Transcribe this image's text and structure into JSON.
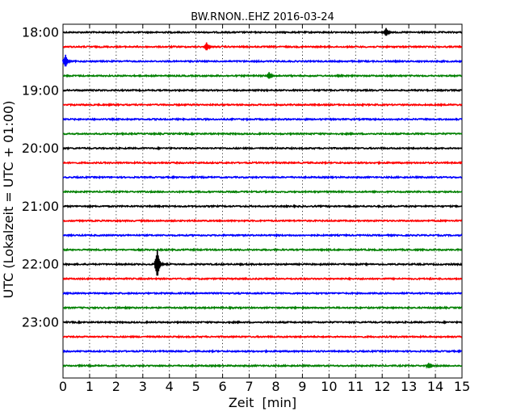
{
  "chart_data": {
    "type": "line",
    "title": "BW.RNON..EHZ 2016-03-24",
    "xlabel": "Zeit  [min]",
    "ylabel": "UTC (Lokalzeit = UTC + 01:00)",
    "xlim": [
      0,
      15
    ],
    "x_ticks": [
      "0",
      "1",
      "2",
      "3",
      "4",
      "5",
      "6",
      "7",
      "8",
      "9",
      "10",
      "11",
      "12",
      "13",
      "14",
      "15"
    ],
    "y_tick_labels": [
      "18:00",
      "19:00",
      "20:00",
      "21:00",
      "22:00",
      "23:00"
    ],
    "grid": "vertical dotted lines at each minute",
    "line_colors": [
      "#000000",
      "#ff0000",
      "#0000ff",
      "#008000"
    ],
    "traces": [
      {
        "start": "18:00",
        "color": "#000000",
        "events": [
          {
            "x": 12.2,
            "amp": 0.3
          }
        ]
      },
      {
        "start": "18:15",
        "color": "#ff0000",
        "events": [
          {
            "x": 5.45,
            "amp": 0.3
          }
        ]
      },
      {
        "start": "18:30",
        "color": "#0000ff",
        "events": [
          {
            "x": 0.15,
            "amp": 0.45
          }
        ]
      },
      {
        "start": "18:45",
        "color": "#008000",
        "events": [
          {
            "x": 7.8,
            "amp": 0.25
          }
        ]
      },
      {
        "start": "19:00",
        "color": "#000000",
        "events": []
      },
      {
        "start": "19:15",
        "color": "#ff0000",
        "events": []
      },
      {
        "start": "19:30",
        "color": "#0000ff",
        "events": []
      },
      {
        "start": "19:45",
        "color": "#008000",
        "events": []
      },
      {
        "start": "20:00",
        "color": "#000000",
        "events": []
      },
      {
        "start": "20:15",
        "color": "#ff0000",
        "events": []
      },
      {
        "start": "20:30",
        "color": "#0000ff",
        "events": []
      },
      {
        "start": "20:45",
        "color": "#008000",
        "events": []
      },
      {
        "start": "21:00",
        "color": "#000000",
        "events": []
      },
      {
        "start": "21:15",
        "color": "#ff0000",
        "events": []
      },
      {
        "start": "21:30",
        "color": "#0000ff",
        "events": []
      },
      {
        "start": "21:45",
        "color": "#008000",
        "events": []
      },
      {
        "start": "22:00",
        "color": "#000000",
        "events": [
          {
            "x": 3.6,
            "amp": 1.0
          }
        ]
      },
      {
        "start": "22:15",
        "color": "#ff0000",
        "events": []
      },
      {
        "start": "22:30",
        "color": "#0000ff",
        "events": []
      },
      {
        "start": "22:45",
        "color": "#008000",
        "events": []
      },
      {
        "start": "23:00",
        "color": "#000000",
        "events": []
      },
      {
        "start": "23:15",
        "color": "#ff0000",
        "events": []
      },
      {
        "start": "23:30",
        "color": "#0000ff",
        "events": []
      },
      {
        "start": "23:45",
        "color": "#008000",
        "events": [
          {
            "x": 13.8,
            "amp": 0.2
          }
        ]
      }
    ]
  }
}
